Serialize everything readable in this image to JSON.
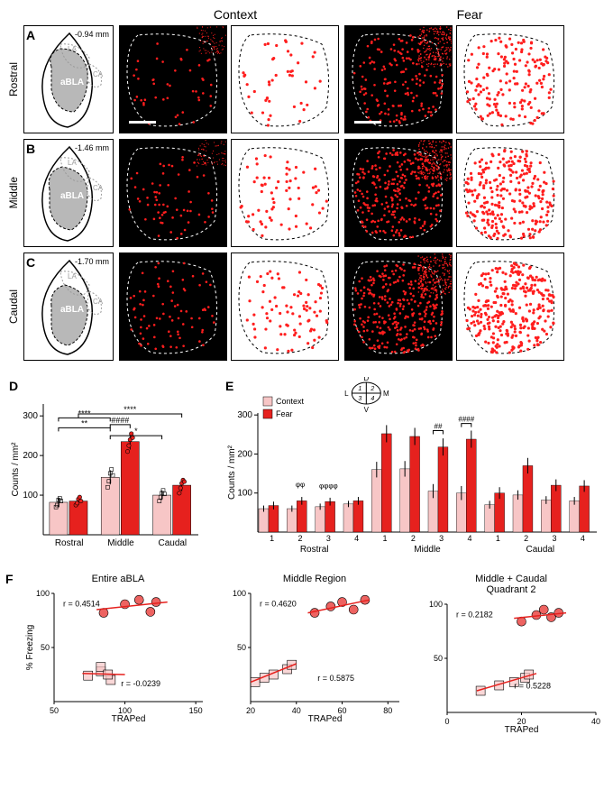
{
  "colors": {
    "fear": "#e6211e",
    "context": "#f7c6c6",
    "black": "#000000",
    "white": "#ffffff",
    "grey_fill": "#b8b8b8",
    "grey_line": "#9a9a9a",
    "cluster_red": "#ff1e1e"
  },
  "col_headers": {
    "context": "Context",
    "fear": "Fear"
  },
  "rows": [
    {
      "label": "A",
      "side": "Rostral",
      "bregma": "-0.94 mm",
      "region": "aBLA",
      "la": "LA",
      "ca": "CA"
    },
    {
      "label": "B",
      "side": "Middle",
      "bregma": "-1.46 mm",
      "region": "aBLA",
      "la": "LA",
      "ca": "CA"
    },
    {
      "label": "C",
      "side": "Caudal",
      "bregma": "-1.70 mm",
      "region": "aBLA",
      "la": "LA",
      "ca": "CA"
    }
  ],
  "dot_counts": {
    "rostral": {
      "context": 45,
      "fear": 160
    },
    "middle": {
      "context": 65,
      "fear": 260
    },
    "caudal": {
      "context": 80,
      "fear": 300
    }
  },
  "panelD": {
    "label": "D",
    "ylabel": "Counts / mm²",
    "ylim": [
      0,
      330
    ],
    "yticks": [
      100,
      200,
      300
    ],
    "categories": [
      "Rostral",
      "Middle",
      "Caudal"
    ],
    "context": {
      "means": [
        82,
        145,
        100
      ],
      "err": [
        12,
        18,
        12
      ],
      "points": [
        [
          70,
          75,
          88,
          92,
          85
        ],
        [
          120,
          135,
          155,
          165,
          150
        ],
        [
          85,
          95,
          105,
          112,
          103
        ]
      ]
    },
    "fear": {
      "means": [
        85,
        235,
        125
      ],
      "err": [
        10,
        20,
        15
      ],
      "points": [
        [
          75,
          80,
          90,
          95,
          85
        ],
        [
          210,
          225,
          240,
          255,
          245
        ],
        [
          105,
          118,
          130,
          138,
          134
        ]
      ]
    },
    "sig": [
      {
        "text": "****",
        "from": 0,
        "to": 2,
        "side": "context",
        "y": 295
      },
      {
        "text": "**",
        "from": 0,
        "to": 2,
        "side": "context",
        "y": 270
      },
      {
        "text": "*",
        "from": 2,
        "to": 4,
        "side": "context",
        "y": 250
      },
      {
        "text": "####",
        "from": 2,
        "to": 3,
        "side": "fear",
        "y": 278
      },
      {
        "text": "****",
        "from": 1,
        "to": 5,
        "side": "fear",
        "y": 305
      }
    ],
    "bar_width": 0.35,
    "fontsize_axis": 10,
    "fontsize_sig": 9
  },
  "panelE": {
    "label": "E",
    "ylabel": "Counts / mm²",
    "ylim": [
      0,
      305
    ],
    "yticks": [
      100,
      200,
      300
    ],
    "legend": {
      "context": "Context",
      "fear": "Fear"
    },
    "compass": {
      "D": "D",
      "V": "V",
      "L": "L",
      "M": "M",
      "q": [
        "1",
        "2",
        "3",
        "4"
      ]
    },
    "groups": [
      "Rostral",
      "Middle",
      "Caudal"
    ],
    "quadrants": [
      "1",
      "2",
      "3",
      "4"
    ],
    "context_means": [
      [
        60,
        60,
        65,
        72
      ],
      [
        160,
        162,
        105,
        100
      ],
      [
        70,
        95,
        82,
        80
      ]
    ],
    "context_err": [
      [
        8,
        8,
        8,
        8
      ],
      [
        20,
        20,
        18,
        18
      ],
      [
        10,
        12,
        10,
        10
      ]
    ],
    "fear_means": [
      [
        68,
        80,
        78,
        80
      ],
      [
        252,
        245,
        218,
        238
      ],
      [
        100,
        170,
        120,
        118
      ]
    ],
    "fear_err": [
      [
        10,
        10,
        10,
        10
      ],
      [
        22,
        22,
        22,
        22
      ],
      [
        15,
        20,
        15,
        15
      ]
    ],
    "sig": [
      {
        "text": "φφ",
        "group": 0,
        "q": 1,
        "y": 115
      },
      {
        "text": "φφφφ",
        "group": 0,
        "q": 2,
        "y": 112
      },
      {
        "text": "##",
        "group": 1,
        "q": 2,
        "y": 260
      },
      {
        "text": "####",
        "group": 1,
        "q": 3,
        "y": 278
      }
    ],
    "bar_width": 0.35,
    "fontsize_axis": 10
  },
  "panelF": {
    "label": "F",
    "ylabel": "% Freezing",
    "xlabel": "TRAPed",
    "plots": [
      {
        "title": "Entire aBLA",
        "xlim": [
          50,
          155
        ],
        "xticks": [
          50,
          100,
          150
        ],
        "ylim": [
          0,
          100
        ],
        "yticks": [
          50,
          100
        ],
        "fear": {
          "r_text": "r = 0.4514",
          "points": [
            [
              85,
              82
            ],
            [
              100,
              90
            ],
            [
              110,
              94
            ],
            [
              118,
              83
            ],
            [
              122,
              92
            ]
          ],
          "line": [
            [
              80,
              85
            ],
            [
              130,
              92
            ]
          ]
        },
        "context": {
          "r_text": "r = -0.0239",
          "points": [
            [
              74,
              24
            ],
            [
              83,
              28
            ],
            [
              90,
              20
            ],
            [
              83,
              32
            ],
            [
              88,
              25
            ]
          ],
          "line": [
            [
              70,
              26
            ],
            [
              100,
              25
            ]
          ]
        }
      },
      {
        "title": "Middle Region",
        "xlim": [
          20,
          85
        ],
        "xticks": [
          20,
          40,
          60,
          80
        ],
        "ylim": [
          0,
          100
        ],
        "yticks": [
          50,
          100
        ],
        "fear": {
          "r_text": "r = 0.4620",
          "points": [
            [
              48,
              82
            ],
            [
              55,
              88
            ],
            [
              60,
              92
            ],
            [
              65,
              85
            ],
            [
              70,
              94
            ]
          ],
          "line": [
            [
              45,
              82
            ],
            [
              72,
              94
            ]
          ]
        },
        "context": {
          "r_text": "r = 0.5875",
          "points": [
            [
              22,
              18
            ],
            [
              26,
              22
            ],
            [
              30,
              25
            ],
            [
              36,
              30
            ],
            [
              38,
              34
            ]
          ],
          "line": [
            [
              20,
              18
            ],
            [
              40,
              35
            ]
          ]
        }
      },
      {
        "title": "Middle + Caudal\nQuadrant 2",
        "xlim": [
          0,
          40
        ],
        "xticks": [
          0,
          20,
          40
        ],
        "ylim": [
          0,
          100
        ],
        "yticks": [
          50,
          100
        ],
        "fear": {
          "r_text": "r = 0.2182",
          "points": [
            [
              20,
              84
            ],
            [
              24,
              90
            ],
            [
              26,
              95
            ],
            [
              28,
              88
            ],
            [
              30,
              92
            ]
          ],
          "line": [
            [
              18,
              87
            ],
            [
              32,
              92
            ]
          ]
        },
        "context": {
          "r_text": "r = 0.5228",
          "points": [
            [
              9,
              20
            ],
            [
              14,
              25
            ],
            [
              18,
              28
            ],
            [
              21,
              32
            ],
            [
              22,
              35
            ]
          ],
          "line": [
            [
              8,
              20
            ],
            [
              24,
              36
            ]
          ]
        }
      }
    ],
    "marker_size": 5,
    "fontsize_title": 11,
    "fontsize_r": 9
  }
}
